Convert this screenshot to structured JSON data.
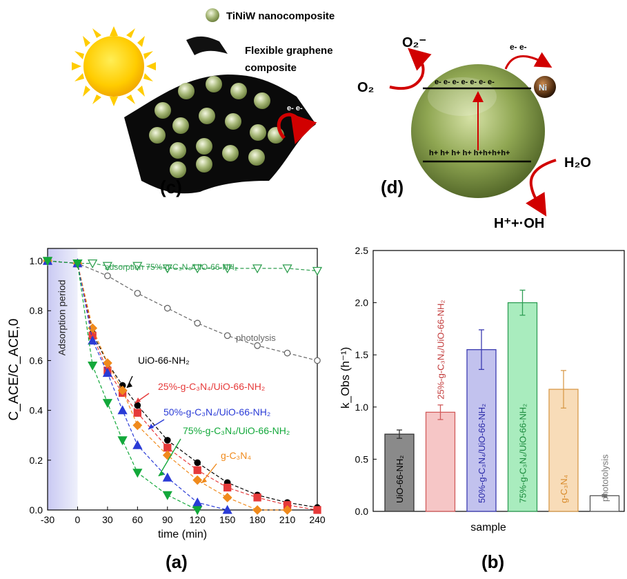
{
  "panel_c": {
    "legend_nano": "TiNiW nanocomposite",
    "legend_graphene_1": "Flexible graphene",
    "legend_graphene_2": "composite",
    "electrons": "e- e-",
    "label": "(c)"
  },
  "panel_d": {
    "o2_minus": "O₂⁻",
    "o2": "O₂",
    "electrons_top": "e- e-",
    "electron_row": "e- e- e- e- e- e- e-",
    "hole_row": "h+ h+ h+ h+ h+h+h+h+",
    "ni": "Ni",
    "h2o": "H₂O",
    "products": "H⁺+·OH",
    "label": "(d)"
  },
  "panel_a_label": "(a)",
  "panel_b_label": "(b)",
  "chart_data": [
    {
      "type": "line",
      "xlabel": "time (min)",
      "ylabel": "C_ACE/C_ACE,0",
      "xlim": [
        -30,
        240
      ],
      "ylim": [
        0,
        1.05
      ],
      "x_ticks": [
        "-30",
        "0",
        "30",
        "60",
        "90",
        "120",
        "150",
        "180",
        "210",
        "240"
      ],
      "y_ticks": [
        "0.0",
        "0.2",
        "0.4",
        "0.6",
        "0.8",
        "1.0"
      ],
      "shaded_region_label": "Adsorption period",
      "shaded_region": [
        -30,
        0
      ],
      "series": [
        {
          "name": "adsorption 75%-g-C₃N₄/UiO-66-NH₂",
          "color": "#2e9e4f",
          "marker": "triangle-down-open",
          "x": [
            -30,
            0,
            15,
            30,
            60,
            90,
            120,
            150,
            180,
            210,
            240
          ],
          "y": [
            1.0,
            0.99,
            0.99,
            0.98,
            0.98,
            0.97,
            0.97,
            0.97,
            0.97,
            0.97,
            0.96
          ]
        },
        {
          "name": "photolysis",
          "color": "#666666",
          "marker": "circle-open",
          "x": [
            -30,
            0,
            30,
            60,
            90,
            120,
            150,
            180,
            210,
            240
          ],
          "y": [
            1.0,
            0.99,
            0.94,
            0.87,
            0.81,
            0.75,
            0.7,
            0.66,
            0.63,
            0.6
          ]
        },
        {
          "name": "UiO-66-NH₂",
          "color": "#000000",
          "marker": "circle",
          "x": [
            -30,
            0,
            15,
            30,
            45,
            60,
            90,
            120,
            150,
            180,
            210,
            240
          ],
          "y": [
            1.0,
            0.99,
            0.71,
            0.59,
            0.5,
            0.42,
            0.28,
            0.19,
            0.11,
            0.06,
            0.03,
            0.01
          ]
        },
        {
          "name": "25%-g-C₃N₄/UiO-66-NH₂",
          "color": "#e63a3a",
          "marker": "square",
          "x": [
            -30,
            0,
            15,
            30,
            45,
            60,
            90,
            120,
            150,
            180,
            210,
            240
          ],
          "y": [
            1.0,
            0.99,
            0.7,
            0.56,
            0.47,
            0.39,
            0.25,
            0.16,
            0.09,
            0.05,
            0.02,
            0.0
          ]
        },
        {
          "name": "g-C₃N₄",
          "color": "#f08a1c",
          "marker": "diamond",
          "x": [
            -30,
            0,
            15,
            30,
            45,
            60,
            90,
            120,
            150,
            180,
            210
          ],
          "y": [
            1.0,
            0.99,
            0.73,
            0.59,
            0.48,
            0.34,
            0.22,
            0.12,
            0.05,
            0.0,
            0.0
          ]
        },
        {
          "name": "50%-g-C₃N₄/UiO-66-NH₂",
          "color": "#2a3bd6",
          "marker": "triangle-up",
          "x": [
            -30,
            0,
            15,
            30,
            45,
            60,
            90,
            120,
            150
          ],
          "y": [
            1.0,
            0.99,
            0.68,
            0.55,
            0.4,
            0.26,
            0.13,
            0.03,
            0.0
          ]
        },
        {
          "name": "75%-g-C₃N₄/UiO-66-NH₂",
          "color": "#12a83a",
          "marker": "triangle-down",
          "x": [
            -30,
            0,
            15,
            30,
            45,
            60,
            90,
            120
          ],
          "y": [
            1.0,
            0.99,
            0.58,
            0.43,
            0.28,
            0.15,
            0.06,
            0.0
          ]
        }
      ],
      "annotations": [
        {
          "text": "adsorption 75%-g-C₃N₄/UiO-66-NH₂",
          "color": "#2e9e4f"
        },
        {
          "text": "photolysis",
          "color": "#666666"
        },
        {
          "text": "UiO-66-NH₂",
          "color": "#000000"
        },
        {
          "text": "25%-g-C₃N₄/UiO-66-NH₂",
          "color": "#e63a3a"
        },
        {
          "text": "50%-g-C₃N₄/UiO-66-NH₂",
          "color": "#2a3bd6"
        },
        {
          "text": "75%-g-C₃N₄/UiO-66-NH₂",
          "color": "#12a83a"
        },
        {
          "text": "g-C₃N₄",
          "color": "#f08a1c"
        }
      ]
    },
    {
      "type": "bar",
      "xlabel": "sample",
      "ylabel": "k_Obs (h⁻¹)",
      "ylim": [
        0,
        2.5
      ],
      "y_ticks": [
        "0.0",
        "0.5",
        "1.0",
        "1.5",
        "2.0",
        "2.5"
      ],
      "categories": [
        "UiO-66-NH₂",
        "25%-g-C₃N₄/UiO-66-NH₂",
        "50%-g-C₃N₄/UiO-66-NH₂",
        "75%-g-C₃N₄/UiO-66-NH₂",
        "g-C₃N₄",
        "phototolysis"
      ],
      "values": [
        0.74,
        0.95,
        1.55,
        2.0,
        1.17,
        0.15
      ],
      "errors": [
        0.04,
        0.07,
        0.19,
        0.12,
        0.18,
        0.01
      ],
      "fill_colors": [
        "#8a8a8a",
        "#f6c6c6",
        "#c2c2ee",
        "#a9ecbe",
        "#f8dcb8",
        "#ffffff"
      ],
      "edge_colors": [
        "#333333",
        "#d15a5a",
        "#3a3ab0",
        "#2f9e55",
        "#d89a4a",
        "#555555"
      ],
      "label_colors": [
        "#000000",
        "#c23a3a",
        "#2a2aa8",
        "#1a8a3c",
        "#d88a2a",
        "#777777"
      ]
    }
  ]
}
